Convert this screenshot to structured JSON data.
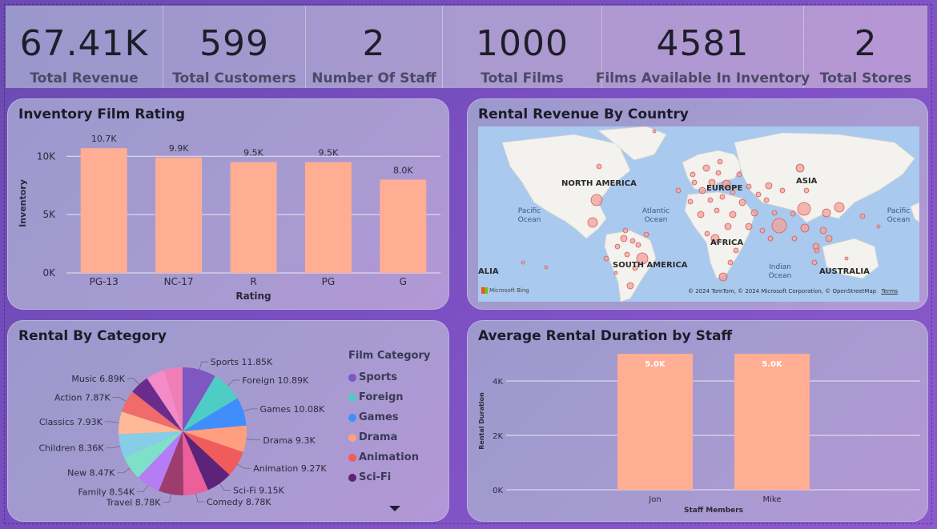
{
  "kpis": [
    {
      "value": "67.41K",
      "label": "Total Revenue"
    },
    {
      "value": "599",
      "label": "Total Customers"
    },
    {
      "value": "2",
      "label": "Number Of Staff"
    },
    {
      "value": "1000",
      "label": "Total Films"
    },
    {
      "value": "4581",
      "label": "Films Available In Inventory"
    },
    {
      "value": "2",
      "label": "Total Stores"
    }
  ],
  "panels": {
    "rating": {
      "title": "Inventory Film Rating"
    },
    "country": {
      "title": "Rental Revenue By Country"
    },
    "category": {
      "title": "Rental By Category"
    },
    "staff": {
      "title": "Average Rental Duration by Staff"
    }
  },
  "map": {
    "labels": {
      "north_america": "NORTH AMERICA",
      "europe": "EUROPE",
      "asia": "ASIA",
      "pacific_left": "Pacific Ocean",
      "atlantic": "Atlantic Ocean",
      "pacific_right": "Pacific Ocean",
      "africa": "AFRICA",
      "south_america": "SOUTH AMERICA",
      "indian": "Indian Ocean",
      "australia": "AUSTRALIA",
      "alia": "ALIA"
    },
    "attribution": "© 2024 TomTom, © 2024 Microsoft Corporation, © OpenStreetMap",
    "terms": "Terms",
    "provider": "Microsoft Bing",
    "colors": {
      "water": "#a9c9ee",
      "land": "#f3f2ee",
      "bubble": "#f4a09a"
    }
  },
  "chart_data": [
    {
      "type": "bar",
      "title": "Inventory Film Rating",
      "categories": [
        "PG-13",
        "NC-17",
        "R",
        "PG",
        "G"
      ],
      "values": [
        10.7,
        9.9,
        9.5,
        9.5,
        8.0
      ],
      "data_labels": [
        "10.7K",
        "9.9K",
        "9.5K",
        "9.5K",
        "8.0K"
      ],
      "xlabel": "Rating",
      "ylabel": "Inventory",
      "yticks": [
        "0K",
        "5K",
        "10K"
      ],
      "ylim": [
        0,
        12
      ],
      "color": "#ffad93"
    },
    {
      "type": "pie",
      "title": "Rental By Category",
      "legend_title": "Film Category",
      "slices": [
        {
          "name": "Sports",
          "label": "Sports 11.85K",
          "value": 11.85,
          "color": "#7e57c2"
        },
        {
          "name": "Foreign",
          "label": "Foreign 10.89K",
          "value": 10.89,
          "color": "#4ecdc4"
        },
        {
          "name": "Games",
          "label": "Games 10.08K",
          "value": 10.08,
          "color": "#3f8efc"
        },
        {
          "name": "Drama",
          "label": "Drama 9.3K",
          "value": 9.3,
          "color": "#ff9f7f"
        },
        {
          "name": "Animation",
          "label": "Animation 9.27K",
          "value": 9.27,
          "color": "#f25b5b"
        },
        {
          "name": "Sci-Fi",
          "label": "Sci-Fi 9.15K",
          "value": 9.15,
          "color": "#5c2378"
        },
        {
          "name": "Comedy",
          "label": "Comedy 8.78K",
          "value": 8.78,
          "color": "#ec5f9a"
        },
        {
          "name": "Travel",
          "label": "Travel 8.78K",
          "value": 8.78,
          "color": "#9c3d6e"
        },
        {
          "name": "Family",
          "label": "Family 8.54K",
          "value": 8.54,
          "color": "#b57cf5"
        },
        {
          "name": "New",
          "label": "New 8.47K",
          "value": 8.47,
          "color": "#7ee0c8"
        },
        {
          "name": "Children",
          "label": "Children 8.36K",
          "value": 8.36,
          "color": "#86cde8"
        },
        {
          "name": "Classics",
          "label": "Classics 7.93K",
          "value": 7.93,
          "color": "#ffb997"
        },
        {
          "name": "Action",
          "label": "Action 7.87K",
          "value": 7.87,
          "color": "#f06b6b"
        },
        {
          "name": "Music",
          "label": "Music 6.89K",
          "value": 6.89,
          "color": "#6a2c8c"
        },
        {
          "name": "",
          "label": "",
          "value": 6.6,
          "color": "#f28bc7"
        },
        {
          "name": "",
          "label": "",
          "value": 6.5,
          "color": "#f27eb8"
        }
      ],
      "legend_items": [
        "Sports",
        "Foreign",
        "Games",
        "Drama",
        "Animation",
        "Sci-Fi"
      ]
    },
    {
      "type": "bar",
      "title": "Average Rental Duration by Staff",
      "categories": [
        "Jon",
        "Mike"
      ],
      "values": [
        5.0,
        5.0
      ],
      "data_labels": [
        "5.0K",
        "5.0K"
      ],
      "xlabel": "Staff Members",
      "ylabel": "Rental Duration",
      "yticks": [
        "0K",
        "2K",
        "4K"
      ],
      "ylim": [
        0,
        5.0
      ],
      "color": "#ffad93"
    }
  ]
}
